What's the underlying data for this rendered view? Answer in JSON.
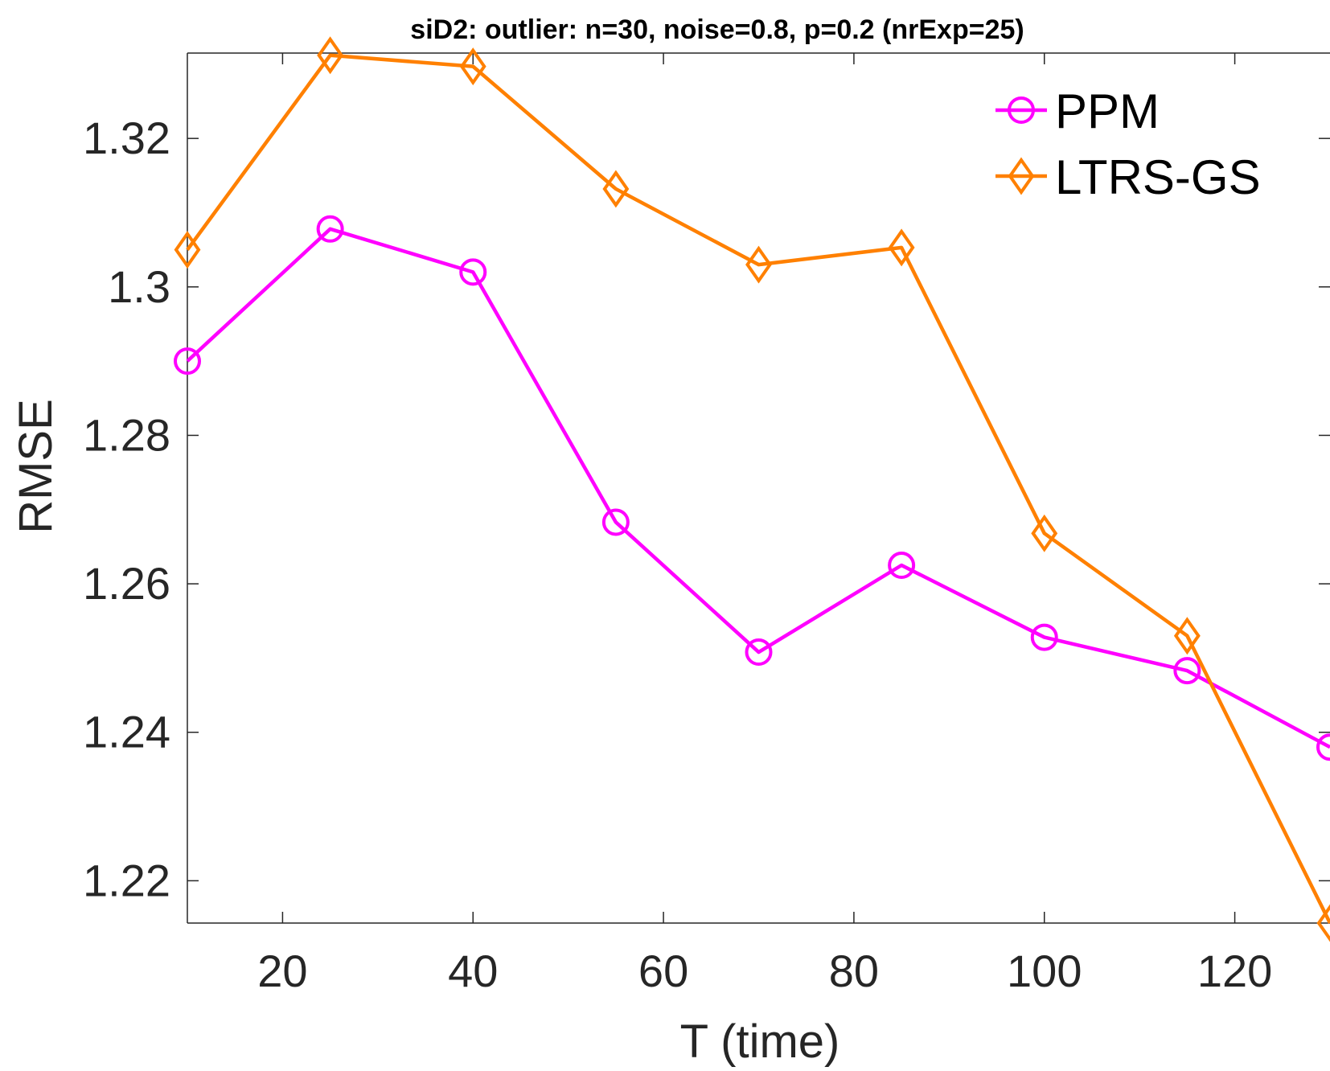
{
  "chart_data": {
    "type": "line",
    "title": "siD2: outlier: n=30, noise=0.8, p=0.2 (nrExp=25)",
    "xlabel": "T (time)",
    "ylabel": "RMSE",
    "xlim": [
      10,
      130
    ],
    "ylim": [
      1.2143,
      1.3315
    ],
    "xticks": [
      20,
      40,
      60,
      80,
      100,
      120
    ],
    "xtick_labels": [
      "20",
      "40",
      "60",
      "80",
      "100",
      "120"
    ],
    "yticks": [
      1.22,
      1.24,
      1.26,
      1.28,
      1.3,
      1.32
    ],
    "ytick_labels": [
      "1.22",
      "1.24",
      "1.26",
      "1.28",
      "1.3",
      "1.32"
    ],
    "grid": false,
    "legend_position": "top-right",
    "x": [
      10,
      25,
      40,
      55,
      70,
      85,
      100,
      115,
      130
    ],
    "series": [
      {
        "name": "PPM",
        "color": "#ff00ff",
        "marker": "circle",
        "values": [
          1.29,
          1.3078,
          1.302,
          1.2683,
          1.2508,
          1.2625,
          1.2528,
          1.2483,
          1.238
        ]
      },
      {
        "name": "LTRS-GS",
        "color": "#ff8000",
        "marker": "diamond",
        "values": [
          1.305,
          1.3312,
          1.3297,
          1.3132,
          1.303,
          1.3053,
          1.2668,
          1.253,
          1.2143
        ]
      }
    ]
  }
}
